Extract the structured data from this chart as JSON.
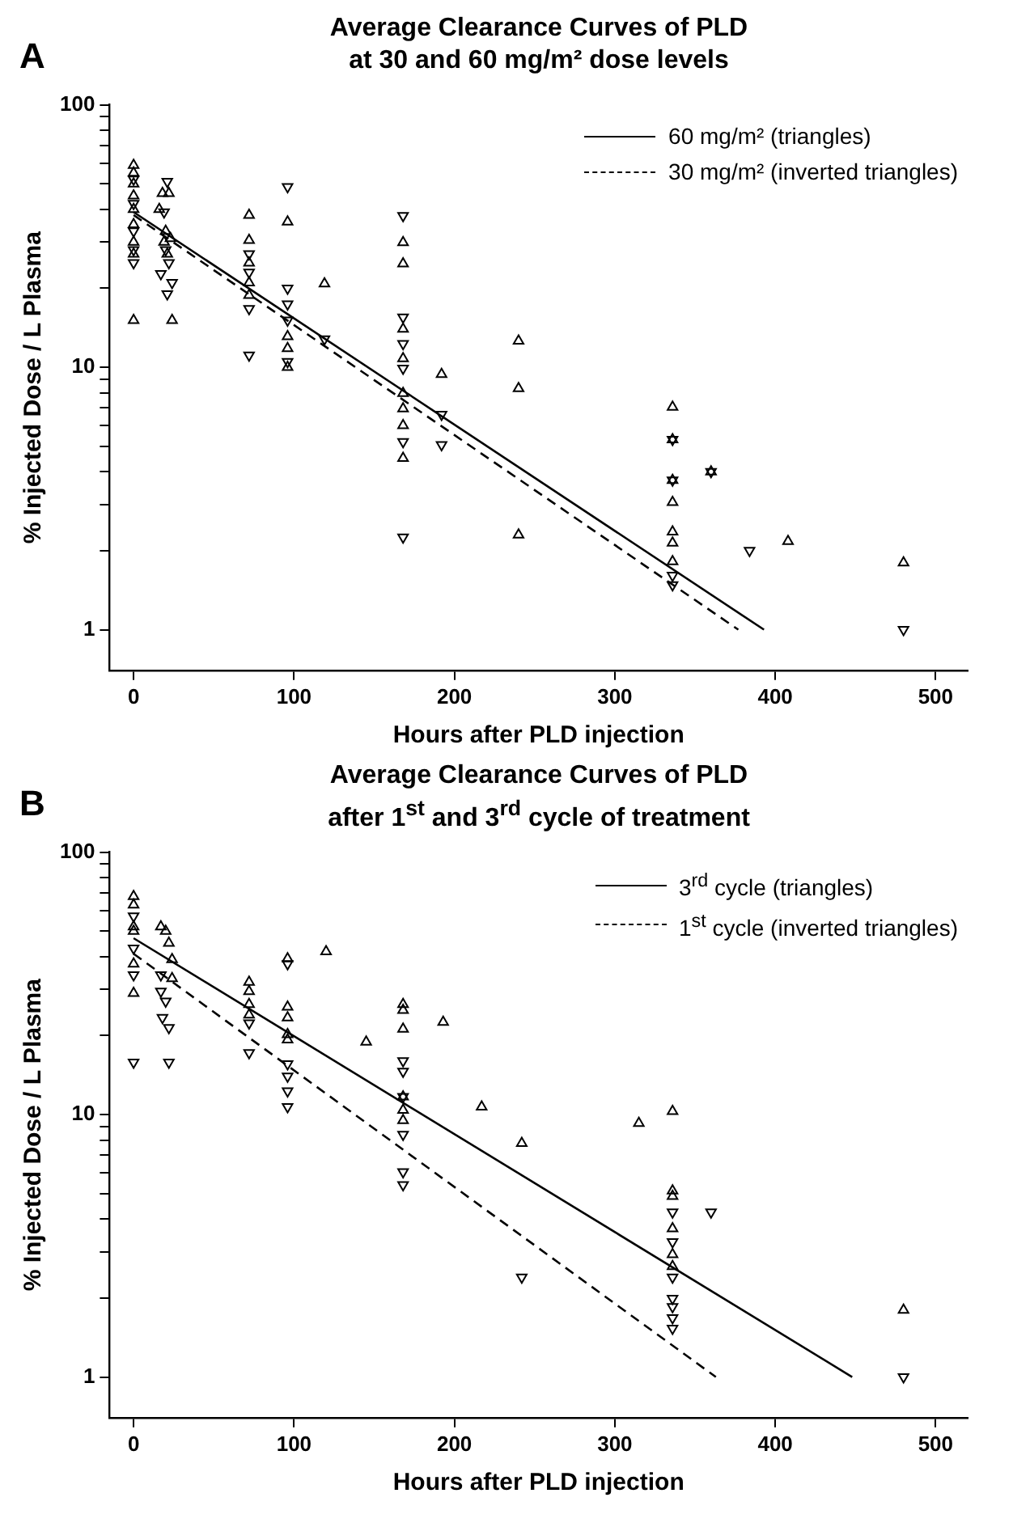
{
  "chart_data": [
    {
      "type": "scatter",
      "title": "Average Clearance Curves of PLD\nat 30 and 60 mg/m² dose levels",
      "xlabel": "Hours after PLD injection",
      "ylabel": "% Injected Dose / L Plasma",
      "annotations": [
        "A"
      ],
      "log": "y",
      "grid": false,
      "legend": "top right",
      "xlim": [
        -15,
        520
      ],
      "xticks": [
        0,
        100,
        200,
        300,
        400,
        500
      ],
      "ylim": [
        0.7,
        100
      ],
      "yticks": [
        1,
        {
          "value": 2,
          "label": null
        },
        {
          "value": 3,
          "label": null
        },
        {
          "value": 4,
          "label": null
        },
        {
          "value": 5,
          "label": null
        },
        {
          "value": 6,
          "label": null
        },
        {
          "value": 7,
          "label": null
        },
        {
          "value": 8,
          "label": null
        },
        {
          "value": 9,
          "label": null
        },
        10,
        {
          "value": 20,
          "label": null
        },
        {
          "value": 30,
          "label": null
        },
        {
          "value": 40,
          "label": null
        },
        {
          "value": 50,
          "label": null
        },
        {
          "value": 60,
          "label": null
        },
        {
          "value": 70,
          "label": null
        },
        {
          "value": 80,
          "label": null
        },
        {
          "value": 90,
          "label": null
        },
        100
      ],
      "series": [
        {
          "marker": "triangle",
          "color": "#000000",
          "x": [
            0,
            0,
            0,
            0,
            0,
            0,
            0,
            0,
            0,
            16,
            18,
            22,
            20,
            19,
            21,
            24,
            23,
            72,
            72,
            72,
            72,
            72,
            96,
            96,
            96,
            96,
            119,
            168,
            168,
            168,
            168,
            168,
            168,
            168,
            168,
            192,
            240,
            240,
            240,
            336,
            336,
            336,
            336,
            336,
            336,
            336,
            360,
            408,
            480
          ],
          "values": [
            58.9,
            55,
            50,
            45,
            40,
            35,
            30,
            27,
            15.1,
            40,
            46,
            46,
            33,
            30,
            27,
            15.1,
            31,
            38,
            30.5,
            25,
            21,
            18.8,
            35.8,
            13.1,
            11.8,
            10,
            20.8,
            29.9,
            24.8,
            14,
            10.8,
            7.96,
            6.96,
            6,
            4.5,
            9.4,
            12.6,
            8.3,
            2.3,
            7.06,
            5.3,
            3.71,
            3.06,
            2.36,
            2.14,
            1.82,
            4.0,
            2.17,
            1.8
          ]
        },
        {
          "marker": "triangle",
          "color": "#000000",
          "x": [
            0,
            0,
            0,
            0,
            0,
            21,
            19,
            17,
            24,
            21,
            20,
            22,
            72,
            72,
            72,
            72,
            96,
            96,
            96,
            96,
            96,
            119,
            168,
            168,
            168,
            168,
            168,
            168,
            192,
            192,
            336,
            336,
            336,
            336,
            360,
            384,
            480
          ],
          "values": [
            52,
            42,
            33,
            28,
            25,
            51,
            39,
            22.7,
            21,
            19,
            28,
            25,
            27,
            23,
            16.7,
            11.1,
            48.7,
            20,
            17.4,
            15.1,
            10.5,
            12.8,
            37.8,
            15.5,
            12.3,
            9.9,
            5.2,
            2.25,
            6.6,
            5.06,
            5.3,
            3.71,
            1.61,
            1.48,
            4.0,
            2.0,
            1.0
          ]
        },
        {
          "type": "line",
          "name": "60 mg/m² (triangles)",
          "marker": "none",
          "line_style": "solid",
          "color": "#000000",
          "x": [
            0,
            393
          ],
          "values": [
            39,
            1
          ]
        },
        {
          "type": "line",
          "name": "30 mg/m² (inverted triangles)",
          "marker": "none",
          "line_style": "dashed",
          "color": "#000000",
          "x": [
            0,
            377
          ],
          "values": [
            38,
            1
          ]
        }
      ]
    },
    {
      "type": "scatter",
      "title": "Average Clearance Curves of PLD\nafter 1$^{st}$ and 3$^{rd}$ cycle of treatment",
      "xlabel": "Hours after PLD injection",
      "ylabel": "% Injected Dose / L Plasma",
      "annotations": [
        "B"
      ],
      "log": "y",
      "grid": false,
      "legend": "top right",
      "xlim": [
        -15,
        520
      ],
      "xticks": [
        0,
        100,
        200,
        300,
        400,
        500
      ],
      "ylim": [
        0.7,
        100
      ],
      "yticks": [
        1,
        {
          "value": 2,
          "label": null
        },
        {
          "value": 3,
          "label": null
        },
        {
          "value": 4,
          "label": null
        },
        {
          "value": 5,
          "label": null
        },
        {
          "value": 6,
          "label": null
        },
        {
          "value": 7,
          "label": null
        },
        {
          "value": 8,
          "label": null
        },
        {
          "value": 9,
          "label": null
        },
        10,
        {
          "value": 20,
          "label": null
        },
        {
          "value": 30,
          "label": null
        },
        {
          "value": 40,
          "label": null
        },
        {
          "value": 50,
          "label": null
        },
        {
          "value": 60,
          "label": null
        },
        {
          "value": 70,
          "label": null
        },
        {
          "value": 80,
          "label": null
        },
        {
          "value": 90,
          "label": null
        },
        100
      ],
      "series": [
        {
          "marker": "triangle",
          "color": "#000000",
          "x": [
            0,
            0,
            0,
            0,
            0,
            0,
            17,
            20,
            22,
            24,
            24,
            72,
            72,
            72,
            72,
            96,
            96,
            96,
            96,
            96,
            120,
            145,
            168,
            168,
            168,
            168,
            168,
            168,
            193,
            217,
            242,
            315,
            336,
            336,
            336,
            336,
            336,
            336,
            480
          ],
          "values": [
            67.8,
            63,
            52,
            50,
            37.5,
            29,
            52,
            50,
            45,
            39,
            33,
            32,
            29.5,
            26.3,
            24,
            39.3,
            25.7,
            23.4,
            20.2,
            19.3,
            41.8,
            18.9,
            26.3,
            25,
            21.2,
            11.7,
            10.4,
            9.5,
            22.5,
            10.7,
            7.78,
            9.27,
            10.3,
            5.13,
            4.89,
            3.68,
            2.93,
            2.64,
            1.8
          ]
        },
        {
          "marker": "triangle",
          "color": "#000000",
          "x": [
            0,
            0,
            0,
            0,
            17,
            17,
            20,
            18,
            22,
            22,
            72,
            72,
            96,
            96,
            96,
            96,
            96,
            168,
            168,
            168,
            168,
            168,
            168,
            242,
            336,
            336,
            336,
            336,
            336,
            336,
            336,
            360,
            480
          ],
          "values": [
            57,
            43,
            34,
            15.8,
            34,
            29.5,
            27,
            23.4,
            21.4,
            15.8,
            22.3,
            17.2,
            37.5,
            15.6,
            14,
            12.3,
            10.7,
            16,
            14.6,
            11.7,
            8.4,
            6.05,
            5.4,
            2.4,
            4.25,
            3.27,
            2.4,
            1.99,
            1.85,
            1.68,
            1.53,
            4.25,
            1.0
          ]
        },
        {
          "type": "line",
          "name": "3$^{rd}$ cycle (triangles)",
          "marker": "none",
          "line_style": "solid",
          "color": "#000000",
          "x": [
            0,
            448
          ],
          "values": [
            47,
            1
          ]
        },
        {
          "type": "line",
          "name": "1$^{st}$ cycle (inverted triangles)",
          "marker": "none",
          "line_style": "dashed",
          "color": "#000000",
          "x": [
            0,
            363
          ],
          "values": [
            41,
            1
          ]
        }
      ]
    }
  ]
}
